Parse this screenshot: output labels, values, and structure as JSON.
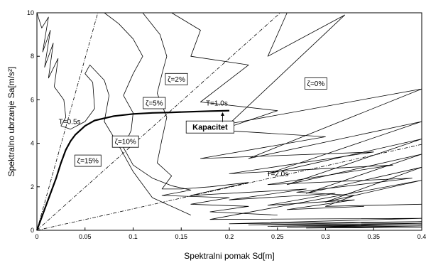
{
  "chart_data": {
    "type": "line",
    "title": "",
    "xlabel": "Spektralni pomak Sd[m]",
    "ylabel": "Spektralno ubrzanje Sa[m/s²]",
    "xlim": [
      0,
      0.4
    ],
    "ylim": [
      0,
      10
    ],
    "x_ticks": [
      0,
      0.05,
      0.1,
      0.15,
      0.2,
      0.25,
      0.3,
      0.35,
      0.4
    ],
    "x_tick_labels": [
      "0",
      "0.05",
      "0.1",
      "0.15",
      "0.2",
      "0.25",
      "0.3",
      "0.35",
      "0.4"
    ],
    "y_ticks": [
      0,
      2,
      4,
      6,
      8,
      10
    ],
    "y_tick_labels": [
      "0",
      "2",
      "4",
      "6",
      "8",
      "10"
    ],
    "grid": false,
    "legend": "none",
    "series": [
      {
        "name": "Kapacitet",
        "style": "bold",
        "x": [
          0,
          0.01,
          0.02,
          0.025,
          0.03,
          0.035,
          0.04,
          0.05,
          0.06,
          0.08,
          0.1,
          0.12,
          0.14,
          0.16,
          0.18,
          0.2
        ],
        "y": [
          0,
          1.2,
          2.4,
          3.1,
          3.7,
          4.1,
          4.4,
          4.8,
          5.05,
          5.25,
          5.35,
          5.4,
          5.42,
          5.45,
          5.48,
          5.5
        ]
      },
      {
        "name": "T=0.5s",
        "style": "dashdot",
        "x": [
          0,
          0.0633
        ],
        "y": [
          0,
          10
        ]
      },
      {
        "name": "T=1.0s",
        "style": "dashdot",
        "x": [
          0,
          0.253
        ],
        "y": [
          0,
          10
        ]
      },
      {
        "name": "T=2.0s",
        "style": "dashdot",
        "x": [
          0,
          0.4
        ],
        "y": [
          0,
          3.95
        ]
      },
      {
        "name": "ζ=15%",
        "style": "thin",
        "x": [
          0.0,
          0.005,
          0.012,
          0.006,
          0.014,
          0.008,
          0.017,
          0.012,
          0.022,
          0.018,
          0.028,
          0.03,
          0.025,
          0.035,
          0.05,
          0.06,
          0.058,
          0.05,
          0.055,
          0.07,
          0.075,
          0.07,
          0.085,
          0.1,
          0.12,
          0.16
        ],
        "y": [
          10.0,
          9.3,
          9.8,
          8.2,
          9.2,
          7.5,
          8.6,
          7.0,
          7.9,
          6.6,
          6.0,
          5.2,
          4.8,
          4.65,
          5.0,
          5.6,
          6.8,
          7.2,
          7.6,
          6.9,
          6.2,
          5.0,
          3.9,
          2.7,
          1.5,
          0.7
        ]
      },
      {
        "name": "ζ=10%",
        "style": "thin",
        "x": [
          0.07,
          0.085,
          0.1,
          0.11,
          0.1,
          0.09,
          0.1,
          0.098,
          0.09,
          0.1,
          0.12,
          0.14,
          0.16,
          0.13,
          0.2,
          0.16,
          0.22,
          0.18,
          0.25
        ],
        "y": [
          10.0,
          9.5,
          8.8,
          8.0,
          7.2,
          6.2,
          5.4,
          4.6,
          3.8,
          3.0,
          2.4,
          2.05,
          1.85,
          1.6,
          1.5,
          1.2,
          1.1,
          0.85,
          0.7
        ]
      },
      {
        "name": "ζ=5%",
        "style": "thin",
        "x": [
          0.11,
          0.128,
          0.135,
          0.13,
          0.125,
          0.135,
          0.13,
          0.125,
          0.14,
          0.13,
          0.15,
          0.18,
          0.22,
          0.16,
          0.28,
          0.2,
          0.31,
          0.24,
          0.33,
          0.26,
          0.34
        ],
        "y": [
          10.0,
          9.0,
          8.0,
          7.2,
          6.3,
          5.2,
          4.2,
          3.1,
          2.5,
          1.9,
          1.9,
          2.0,
          2.2,
          1.6,
          1.9,
          1.4,
          1.7,
          1.15,
          1.4,
          0.95,
          1.1
        ]
      },
      {
        "name": "ζ=2%",
        "style": "thin",
        "x": [
          0.14,
          0.17,
          0.16,
          0.22,
          0.17,
          0.25,
          0.19,
          0.3,
          0.17,
          0.35,
          0.2,
          0.37,
          0.24,
          0.39,
          0.27,
          0.33,
          0.3,
          0.4
        ],
        "y": [
          10.0,
          9.2,
          8.0,
          7.6,
          5.9,
          5.5,
          4.6,
          4.3,
          3.3,
          3.6,
          2.6,
          3.0,
          2.1,
          2.4,
          1.75,
          1.6,
          1.1,
          1.2
        ]
      },
      {
        "name": "ζ=0%",
        "style": "thin",
        "x": [
          0.26,
          0.24,
          0.32,
          0.2,
          0.4,
          0.22,
          0.4,
          0.24,
          0.4,
          0.26,
          0.4,
          0.28,
          0.4,
          0.3,
          0.4,
          0.18,
          0.4,
          0.2,
          0.4,
          0.22,
          0.4,
          0.24,
          0.4,
          0.26,
          0.4,
          0.28,
          0.4
        ],
        "y": [
          10.0,
          8.0,
          9.9,
          4.9,
          6.5,
          3.3,
          5.0,
          2.6,
          4.2,
          2.1,
          3.5,
          1.7,
          2.9,
          1.3,
          2.3,
          0.5,
          0.55,
          0.3,
          0.4,
          0.25,
          0.32,
          0.18,
          0.26,
          0.14,
          0.2,
          0.1,
          0.14
        ]
      }
    ],
    "annotations": [
      {
        "text": "ζ=2%",
        "x": 0.145,
        "y": 6.95,
        "boxed": true,
        "bold": false
      },
      {
        "text": "ζ=0%",
        "x": 0.29,
        "y": 6.75,
        "boxed": true,
        "bold": false
      },
      {
        "text": "ζ=5%",
        "x": 0.122,
        "y": 5.85,
        "boxed": true,
        "bold": false
      },
      {
        "text": "ζ=10%",
        "x": 0.092,
        "y": 4.08,
        "boxed": true,
        "bold": false
      },
      {
        "text": "ζ=15%",
        "x": 0.053,
        "y": 3.2,
        "boxed": true,
        "bold": false
      },
      {
        "text": "Kapacitet",
        "x": 0.18,
        "y": 4.75,
        "boxed": true,
        "bold": true
      },
      {
        "text": "T=0.5s",
        "x": 0.034,
        "y": 5.0,
        "boxed": false,
        "bold": false
      },
      {
        "text": "T=1.0s",
        "x": 0.187,
        "y": 5.85,
        "boxed": false,
        "bold": false
      },
      {
        "text": "T=2.0s",
        "x": 0.25,
        "y": 2.6,
        "boxed": false,
        "bold": false
      }
    ]
  }
}
